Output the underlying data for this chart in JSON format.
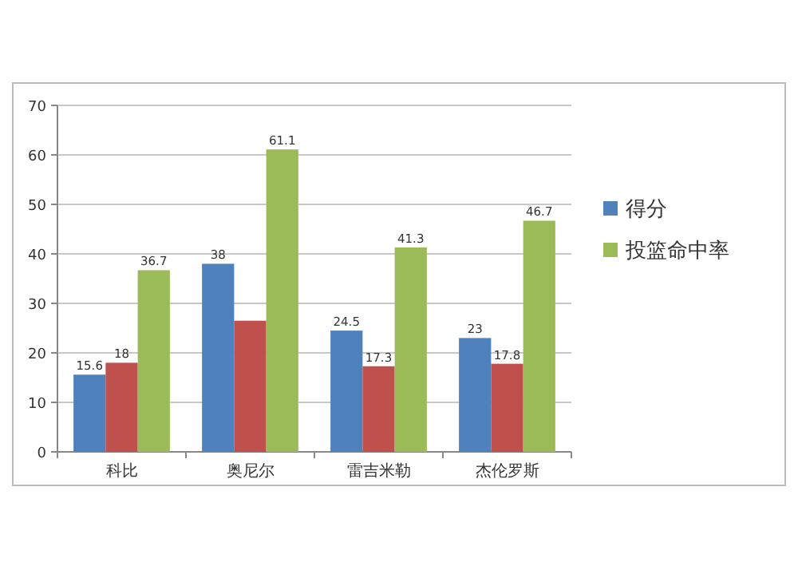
{
  "chart_data": {
    "type": "bar",
    "categories": [
      "科比",
      "奥尼尔",
      "雷吉米勒",
      "杰伦罗斯"
    ],
    "series": [
      {
        "name": "得分",
        "color": "#4f81bd",
        "values": [
          15.6,
          38,
          24.5,
          23
        ],
        "value_labels": [
          "15.6",
          "38",
          "24.5",
          "23"
        ]
      },
      {
        "color": "#c0504d",
        "values": [
          18,
          26.5,
          17.3,
          17.8
        ],
        "value_labels": [
          "18",
          null,
          "17.3",
          "17.8"
        ]
      },
      {
        "name": "投篮命中率",
        "color": "#9bbb59",
        "values": [
          36.7,
          61.1,
          41.3,
          46.7
        ],
        "value_labels": [
          "36.7",
          "61.1",
          "41.3",
          "46.7"
        ]
      }
    ],
    "ylim": [
      0,
      70
    ],
    "yticks": [
      0,
      10,
      20,
      30,
      40,
      50,
      60,
      70
    ],
    "grid": "y",
    "legend": "right"
  }
}
